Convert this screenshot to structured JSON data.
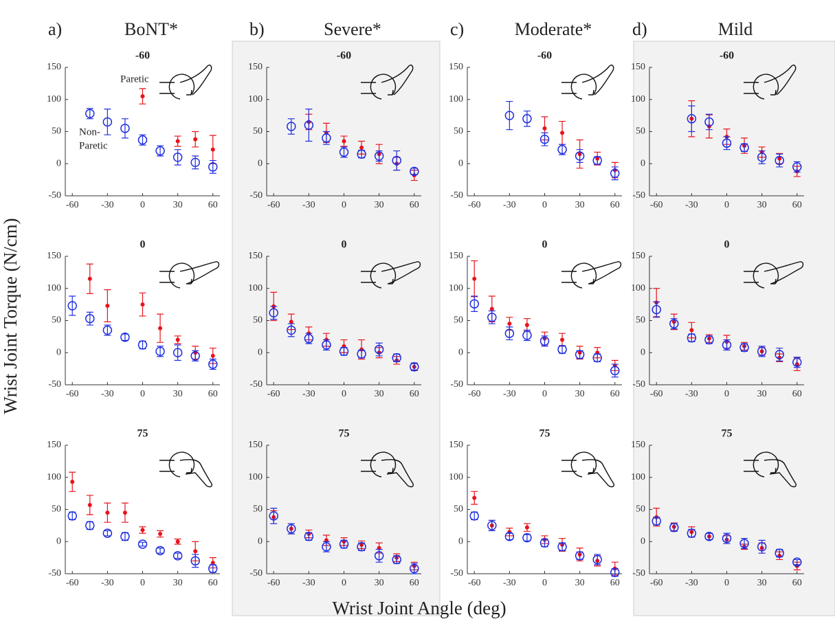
{
  "figure": {
    "ylabel": "Wrist Joint Torque (N/cm)",
    "xlabel": "Wrist Joint Angle (deg)",
    "panels": [
      {
        "label": "a)",
        "title": "BoNT*",
        "shaded": false
      },
      {
        "label": "b)",
        "title": "Severe*",
        "shaded": true
      },
      {
        "label": "c)",
        "title": "Moderate*",
        "shaded": false
      },
      {
        "label": "d)",
        "title": "Mild",
        "shaded": true
      }
    ]
  },
  "chart_data": [
    {
      "type": "scatter",
      "title": "-60",
      "annotations": [
        "Paretic",
        "Non-",
        "Paretic"
      ],
      "x": [
        -60,
        -45,
        -30,
        -15,
        0,
        15,
        30,
        45,
        60
      ],
      "xlim": [
        -66,
        66
      ],
      "ylim": [
        -50,
        150
      ],
      "xticks": [
        -60,
        -30,
        0,
        30,
        60
      ],
      "yticks": [
        -50,
        0,
        50,
        100,
        150
      ],
      "series": [
        {
          "color": "#e8131b",
          "marker": "dot",
          "values": [
            null,
            null,
            null,
            null,
            105,
            null,
            35,
            38,
            22
          ],
          "errors": [
            null,
            null,
            null,
            null,
            12,
            null,
            8,
            12,
            22
          ]
        },
        {
          "color": "#1f2ee0",
          "marker": "circle",
          "values": [
            null,
            78,
            65,
            55,
            37,
            20,
            10,
            2,
            -5
          ],
          "errors": [
            null,
            8,
            20,
            15,
            8,
            8,
            12,
            10,
            10
          ]
        }
      ]
    },
    {
      "type": "scatter",
      "title": "-60",
      "x": [
        -60,
        -45,
        -30,
        -15,
        0,
        15,
        30,
        45,
        60
      ],
      "xlim": [
        -66,
        66
      ],
      "ylim": [
        -50,
        150
      ],
      "xticks": [
        -60,
        -30,
        0,
        30,
        60
      ],
      "yticks": [
        -50,
        0,
        50,
        100,
        150
      ],
      "series": [
        {
          "color": "#e8131b",
          "marker": "dot",
          "values": [
            null,
            null,
            65,
            48,
            35,
            25,
            15,
            0,
            -18
          ],
          "errors": [
            null,
            null,
            12,
            15,
            8,
            10,
            15,
            10,
            8
          ]
        },
        {
          "color": "#1f2ee0",
          "marker": "circle",
          "values": [
            null,
            58,
            60,
            40,
            18,
            15,
            12,
            5,
            -12
          ],
          "errors": [
            null,
            12,
            25,
            10,
            8,
            6,
            8,
            15,
            5
          ]
        }
      ]
    },
    {
      "type": "scatter",
      "title": "-60",
      "x": [
        -60,
        -45,
        -30,
        -15,
        0,
        15,
        30,
        45,
        60
      ],
      "xlim": [
        -66,
        66
      ],
      "ylim": [
        -50,
        150
      ],
      "xticks": [
        -60,
        -30,
        0,
        30,
        60
      ],
      "yticks": [
        -50,
        0,
        50,
        100,
        150
      ],
      "series": [
        {
          "color": "#e8131b",
          "marker": "dot",
          "values": [
            null,
            null,
            null,
            null,
            55,
            48,
            15,
            8,
            -10
          ],
          "errors": [
            null,
            null,
            null,
            null,
            18,
            18,
            22,
            10,
            12
          ]
        },
        {
          "color": "#1f2ee0",
          "marker": "circle",
          "values": [
            null,
            null,
            75,
            70,
            38,
            22,
            12,
            5,
            -15
          ],
          "errors": [
            null,
            null,
            22,
            12,
            10,
            8,
            10,
            6,
            10
          ]
        }
      ]
    },
    {
      "type": "scatter",
      "title": "-60",
      "x": [
        -60,
        -45,
        -30,
        -15,
        0,
        15,
        30,
        45,
        60
      ],
      "xlim": [
        -66,
        66
      ],
      "ylim": [
        -50,
        150
      ],
      "xticks": [
        -60,
        -30,
        0,
        30,
        60
      ],
      "yticks": [
        -50,
        0,
        50,
        100,
        150
      ],
      "series": [
        {
          "color": "#e8131b",
          "marker": "dot",
          "values": [
            null,
            null,
            70,
            58,
            42,
            28,
            18,
            8,
            -12
          ],
          "errors": [
            null,
            null,
            28,
            18,
            12,
            12,
            8,
            8,
            8
          ]
        },
        {
          "color": "#1f2ee0",
          "marker": "circle",
          "values": [
            null,
            null,
            70,
            65,
            32,
            25,
            10,
            5,
            -5
          ],
          "errors": [
            null,
            null,
            20,
            12,
            10,
            6,
            10,
            10,
            8
          ]
        }
      ]
    },
    {
      "type": "scatter",
      "title": "0",
      "x": [
        -60,
        -45,
        -30,
        -15,
        0,
        15,
        30,
        45,
        60
      ],
      "xlim": [
        -66,
        66
      ],
      "ylim": [
        -50,
        150
      ],
      "xticks": [
        -60,
        -30,
        0,
        30,
        60
      ],
      "yticks": [
        -50,
        0,
        50,
        100,
        150
      ],
      "series": [
        {
          "color": "#e8131b",
          "marker": "dot",
          "values": [
            null,
            115,
            73,
            null,
            75,
            38,
            20,
            0,
            -5
          ],
          "errors": [
            null,
            23,
            25,
            null,
            18,
            22,
            6,
            10,
            12
          ]
        },
        {
          "color": "#1f2ee0",
          "marker": "circle",
          "values": [
            73,
            53,
            35,
            24,
            12,
            2,
            0,
            -5,
            -18
          ],
          "errors": [
            15,
            10,
            8,
            5,
            6,
            8,
            12,
            8,
            8
          ]
        }
      ]
    },
    {
      "type": "scatter",
      "title": "0",
      "x": [
        -60,
        -45,
        -30,
        -15,
        0,
        15,
        30,
        45,
        60
      ],
      "xlim": [
        -66,
        66
      ],
      "ylim": [
        -50,
        150
      ],
      "xticks": [
        -60,
        -30,
        0,
        30,
        60
      ],
      "yticks": [
        -50,
        0,
        50,
        100,
        150
      ],
      "series": [
        {
          "color": "#e8131b",
          "marker": "dot",
          "values": [
            72,
            48,
            30,
            20,
            10,
            5,
            0,
            -12,
            -22
          ],
          "errors": [
            22,
            12,
            10,
            10,
            10,
            15,
            8,
            6,
            6
          ]
        },
        {
          "color": "#1f2ee0",
          "marker": "circle",
          "values": [
            62,
            35,
            22,
            12,
            2,
            -2,
            5,
            -8,
            -22
          ],
          "errors": [
            10,
            10,
            8,
            8,
            6,
            6,
            10,
            6,
            5
          ]
        }
      ]
    },
    {
      "type": "scatter",
      "title": "0",
      "x": [
        -60,
        -45,
        -30,
        -15,
        0,
        15,
        30,
        45,
        60
      ],
      "xlim": [
        -66,
        66
      ],
      "ylim": [
        -50,
        150
      ],
      "xticks": [
        -60,
        -30,
        0,
        30,
        60
      ],
      "yticks": [
        -50,
        0,
        50,
        100,
        150
      ],
      "series": [
        {
          "color": "#e8131b",
          "marker": "dot",
          "values": [
            115,
            68,
            45,
            43,
            22,
            20,
            0,
            0,
            -20
          ],
          "errors": [
            28,
            20,
            10,
            10,
            10,
            10,
            10,
            8,
            8
          ]
        },
        {
          "color": "#1f2ee0",
          "marker": "circle",
          "values": [
            76,
            55,
            30,
            27,
            18,
            5,
            -3,
            -8,
            -28
          ],
          "errors": [
            12,
            10,
            10,
            8,
            8,
            6,
            6,
            6,
            10
          ]
        }
      ]
    },
    {
      "type": "scatter",
      "title": "0",
      "x": [
        -60,
        -45,
        -30,
        -15,
        0,
        15,
        30,
        45,
        60
      ],
      "xlim": [
        -66,
        66
      ],
      "ylim": [
        -50,
        150
      ],
      "xticks": [
        -60,
        -30,
        0,
        30,
        60
      ],
      "yticks": [
        -50,
        0,
        50,
        100,
        150
      ],
      "series": [
        {
          "color": "#e8131b",
          "marker": "dot",
          "values": [
            78,
            48,
            35,
            22,
            17,
            10,
            2,
            -8,
            -18
          ],
          "errors": [
            22,
            12,
            12,
            6,
            10,
            6,
            6,
            6,
            10
          ]
        },
        {
          "color": "#1f2ee0",
          "marker": "circle",
          "values": [
            67,
            45,
            23,
            20,
            12,
            8,
            2,
            -3,
            -15
          ],
          "errors": [
            12,
            8,
            6,
            6,
            8,
            6,
            8,
            10,
            8
          ]
        }
      ]
    },
    {
      "type": "scatter",
      "title": "75",
      "x": [
        -60,
        -45,
        -30,
        -15,
        0,
        15,
        30,
        45,
        60
      ],
      "xlim": [
        -66,
        66
      ],
      "ylim": [
        -50,
        150
      ],
      "xticks": [
        -60,
        -30,
        0,
        30,
        60
      ],
      "yticks": [
        -50,
        0,
        50,
        100,
        150
      ],
      "series": [
        {
          "color": "#e8131b",
          "marker": "dot",
          "values": [
            93,
            57,
            45,
            45,
            18,
            12,
            0,
            -15,
            -33
          ],
          "errors": [
            15,
            15,
            15,
            15,
            5,
            5,
            4,
            15,
            8
          ]
        },
        {
          "color": "#1f2ee0",
          "marker": "circle",
          "values": [
            40,
            25,
            13,
            8,
            -4,
            -14,
            -22,
            -30,
            -42
          ],
          "errors": [
            6,
            6,
            4,
            6,
            3,
            4,
            4,
            10,
            6
          ]
        }
      ]
    },
    {
      "type": "scatter",
      "title": "75",
      "x": [
        -60,
        -45,
        -30,
        -15,
        0,
        15,
        30,
        45,
        60
      ],
      "xlim": [
        -66,
        66
      ],
      "ylim": [
        -50,
        150
      ],
      "xticks": [
        -60,
        -30,
        0,
        30,
        60
      ],
      "yticks": [
        -50,
        0,
        50,
        100,
        150
      ],
      "series": [
        {
          "color": "#e8131b",
          "marker": "dot",
          "values": [
            38,
            20,
            12,
            2,
            0,
            -5,
            -10,
            -25,
            -38
          ],
          "errors": [
            10,
            8,
            6,
            8,
            6,
            6,
            8,
            6,
            6
          ]
        },
        {
          "color": "#1f2ee0",
          "marker": "circle",
          "values": [
            40,
            20,
            8,
            -8,
            -4,
            -8,
            -22,
            -28,
            -42
          ],
          "errors": [
            12,
            8,
            6,
            8,
            6,
            6,
            10,
            6,
            8
          ]
        }
      ]
    },
    {
      "type": "scatter",
      "title": "75",
      "x": [
        -60,
        -45,
        -30,
        -15,
        0,
        15,
        30,
        45,
        60
      ],
      "xlim": [
        -66,
        66
      ],
      "ylim": [
        -50,
        150
      ],
      "xticks": [
        -60,
        -30,
        0,
        30,
        60
      ],
      "yticks": [
        -50,
        0,
        50,
        100,
        150
      ],
      "series": [
        {
          "color": "#e8131b",
          "marker": "dot",
          "values": [
            68,
            25,
            15,
            22,
            3,
            -5,
            -20,
            -30,
            -42
          ],
          "errors": [
            10,
            8,
            6,
            6,
            6,
            10,
            10,
            8,
            10
          ]
        },
        {
          "color": "#1f2ee0",
          "marker": "circle",
          "values": [
            40,
            25,
            8,
            6,
            -2,
            -8,
            -22,
            -28,
            -48
          ],
          "errors": [
            6,
            8,
            5,
            5,
            6,
            6,
            6,
            8,
            6
          ]
        }
      ]
    },
    {
      "type": "scatter",
      "title": "75",
      "x": [
        -60,
        -45,
        -30,
        -15,
        0,
        15,
        30,
        45,
        60
      ],
      "xlim": [
        -66,
        66
      ],
      "ylim": [
        -50,
        150
      ],
      "xticks": [
        -60,
        -30,
        0,
        30,
        60
      ],
      "yticks": [
        -50,
        0,
        50,
        100,
        150
      ],
      "series": [
        {
          "color": "#e8131b",
          "marker": "dot",
          "values": [
            38,
            23,
            15,
            8,
            3,
            -8,
            -10,
            -22,
            -38
          ],
          "errors": [
            14,
            6,
            8,
            5,
            6,
            4,
            8,
            6,
            6
          ]
        },
        {
          "color": "#1f2ee0",
          "marker": "circle",
          "values": [
            32,
            22,
            13,
            8,
            5,
            -3,
            -8,
            -18,
            -32
          ],
          "errors": [
            6,
            6,
            6,
            5,
            8,
            8,
            10,
            6,
            4
          ]
        }
      ]
    }
  ]
}
